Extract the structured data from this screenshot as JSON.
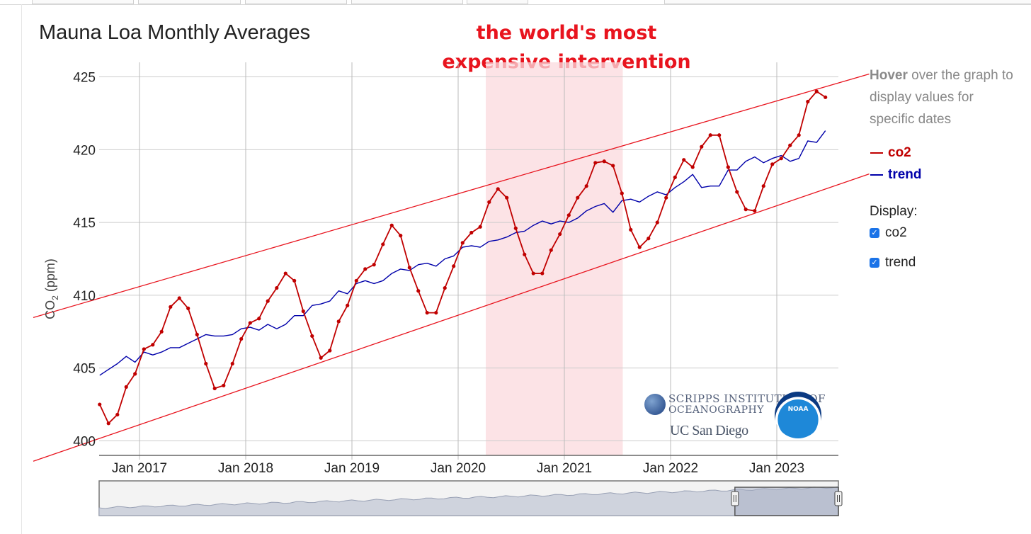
{
  "chart_data": {
    "type": "line",
    "title": "Mauna Loa Monthly Averages",
    "xlabel": "",
    "ylabel": "CO2 (ppm)",
    "ylim": [
      399.0,
      426.0
    ],
    "xlim": [
      2016.62,
      2023.58
    ],
    "x_ticks": [
      2017,
      2018,
      2019,
      2020,
      2021,
      2022,
      2023
    ],
    "x_tick_labels": [
      "Jan 2017",
      "Jan 2018",
      "Jan 2019",
      "Jan 2020",
      "Jan 2021",
      "Jan 2022",
      "Jan 2023"
    ],
    "y_ticks": [
      400,
      405,
      410,
      415,
      420,
      425
    ],
    "y_tick_labels": [
      "400",
      "405",
      "410",
      "415",
      "420",
      "425"
    ],
    "grid": true,
    "series": [
      {
        "name": "co2",
        "color": "#c00000",
        "markers": true,
        "x": [
          2016.625,
          2016.708,
          2016.792,
          2016.875,
          2016.958,
          2017.042,
          2017.125,
          2017.208,
          2017.292,
          2017.375,
          2017.458,
          2017.542,
          2017.625,
          2017.708,
          2017.792,
          2017.875,
          2017.958,
          2018.042,
          2018.125,
          2018.208,
          2018.292,
          2018.375,
          2018.458,
          2018.542,
          2018.625,
          2018.708,
          2018.792,
          2018.875,
          2018.958,
          2019.042,
          2019.125,
          2019.208,
          2019.292,
          2019.375,
          2019.458,
          2019.542,
          2019.625,
          2019.708,
          2019.792,
          2019.875,
          2019.958,
          2020.042,
          2020.125,
          2020.208,
          2020.292,
          2020.375,
          2020.458,
          2020.542,
          2020.625,
          2020.708,
          2020.792,
          2020.875,
          2020.958,
          2021.042,
          2021.125,
          2021.208,
          2021.292,
          2021.375,
          2021.458,
          2021.542,
          2021.625,
          2021.708,
          2021.792,
          2021.875,
          2021.958,
          2022.042,
          2022.125,
          2022.208,
          2022.292,
          2022.375,
          2022.458,
          2022.542,
          2022.625,
          2022.708,
          2022.792,
          2022.875,
          2022.958,
          2023.042,
          2023.125,
          2023.208,
          2023.292,
          2023.375,
          2023.458
        ],
        "values": [
          402.5,
          401.2,
          401.8,
          403.7,
          404.6,
          406.3,
          406.6,
          407.5,
          409.2,
          409.8,
          409.1,
          407.3,
          405.3,
          403.6,
          403.8,
          405.3,
          407.0,
          408.1,
          408.4,
          409.6,
          410.5,
          411.5,
          411.0,
          408.9,
          407.2,
          405.7,
          406.2,
          408.2,
          409.3,
          411.0,
          411.8,
          412.1,
          413.5,
          414.8,
          414.1,
          411.9,
          410.3,
          408.8,
          408.8,
          410.5,
          412.0,
          413.6,
          414.3,
          414.7,
          416.4,
          417.3,
          416.7,
          414.6,
          412.8,
          411.5,
          411.5,
          413.1,
          414.2,
          415.5,
          416.7,
          417.5,
          419.1,
          419.2,
          418.9,
          417.0,
          414.5,
          413.3,
          413.9,
          415.0,
          416.7,
          418.1,
          419.3,
          418.8,
          420.2,
          421.0,
          421.0,
          418.8,
          417.1,
          415.9,
          415.8,
          417.5,
          419.0,
          419.4,
          420.3,
          421.0,
          423.3,
          424.0,
          423.6
        ]
      },
      {
        "name": "trend",
        "color": "#0000aa",
        "markers": false,
        "x": [
          2016.625,
          2016.708,
          2016.792,
          2016.875,
          2016.958,
          2017.042,
          2017.125,
          2017.208,
          2017.292,
          2017.375,
          2017.458,
          2017.542,
          2017.625,
          2017.708,
          2017.792,
          2017.875,
          2017.958,
          2018.042,
          2018.125,
          2018.208,
          2018.292,
          2018.375,
          2018.458,
          2018.542,
          2018.625,
          2018.708,
          2018.792,
          2018.875,
          2018.958,
          2019.042,
          2019.125,
          2019.208,
          2019.292,
          2019.375,
          2019.458,
          2019.542,
          2019.625,
          2019.708,
          2019.792,
          2019.875,
          2019.958,
          2020.042,
          2020.125,
          2020.208,
          2020.292,
          2020.375,
          2020.458,
          2020.542,
          2020.625,
          2020.708,
          2020.792,
          2020.875,
          2020.958,
          2021.042,
          2021.125,
          2021.208,
          2021.292,
          2021.375,
          2021.458,
          2021.542,
          2021.625,
          2021.708,
          2021.792,
          2021.875,
          2021.958,
          2022.042,
          2022.125,
          2022.208,
          2022.292,
          2022.375,
          2022.458,
          2022.542,
          2022.625,
          2022.708,
          2022.792,
          2022.875,
          2022.958,
          2023.042,
          2023.125,
          2023.208,
          2023.292,
          2023.375,
          2023.458
        ],
        "values": [
          404.5,
          404.9,
          405.3,
          405.8,
          405.4,
          406.1,
          405.9,
          406.1,
          406.4,
          406.4,
          406.7,
          407.0,
          407.3,
          407.2,
          407.2,
          407.3,
          407.7,
          407.8,
          407.6,
          408.0,
          407.7,
          408.0,
          408.6,
          408.6,
          409.3,
          409.4,
          409.6,
          410.3,
          410.1,
          410.8,
          411.0,
          410.8,
          411.0,
          411.5,
          411.8,
          411.7,
          412.1,
          412.2,
          412.0,
          412.5,
          412.7,
          413.3,
          413.4,
          413.3,
          413.7,
          413.8,
          414.0,
          414.3,
          414.4,
          414.8,
          415.1,
          414.9,
          415.1,
          415.0,
          415.3,
          415.8,
          416.1,
          416.3,
          415.7,
          416.5,
          416.6,
          416.4,
          416.8,
          417.1,
          416.9,
          417.4,
          417.8,
          418.3,
          417.4,
          417.5,
          417.5,
          418.6,
          418.6,
          419.2,
          419.5,
          419.1,
          419.4,
          419.6,
          419.2,
          419.4,
          420.6,
          420.5,
          421.3
        ]
      }
    ],
    "shaded_region": {
      "x_start": 2020.26,
      "x_end": 2021.55,
      "label": "the world's most expensive intervention"
    },
    "channel_lines": [
      {
        "name": "upper-channel",
        "x": [
          2016.0,
          2023.87
        ],
        "values": [
          408.47,
          425.2
        ]
      },
      {
        "name": "lower-channel",
        "x": [
          2016.0,
          2023.87
        ],
        "values": [
          398.6,
          418.33
        ]
      }
    ]
  },
  "annotation": {
    "line1": "the world's most",
    "line2": "expensive intervention"
  },
  "ylabel_main": "CO",
  "ylabel_sub": "2",
  "ylabel_unit": " (ppm)",
  "sidebar": {
    "hover_bold": "Hover",
    "hover_text": " over the graph to display values for specific dates",
    "legend": [
      {
        "name": "co2"
      },
      {
        "name": "trend"
      }
    ],
    "display_label": "Display:",
    "checkbox_co2": "co2",
    "checkbox_trend": "trend"
  },
  "logos": {
    "scripps_name": "SCRIPPS INSTITUTION OF",
    "scripps_sub": "OCEANOGRAPHY",
    "ucsd_name": "UC San Diego",
    "noaa_name": "NOAA"
  },
  "navigator": {
    "range_start": 0.86,
    "range_end": 1.0
  }
}
